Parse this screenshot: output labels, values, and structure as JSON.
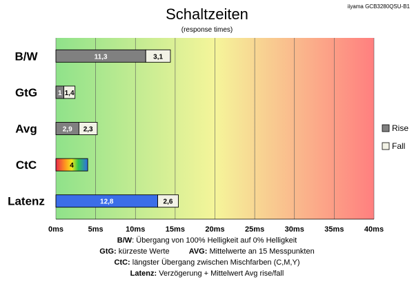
{
  "model": "iiyama GCB3280QSU-B1",
  "chart_data": {
    "type": "bar",
    "orientation": "horizontal",
    "stacked": true,
    "title": "Schaltzeiten",
    "subtitle": "(response times)",
    "categories": [
      "B/W",
      "GtG",
      "Avg",
      "CtC",
      "Latenz"
    ],
    "series": [
      {
        "name": "Rise",
        "values": [
          11.3,
          1,
          2.9,
          null,
          null
        ],
        "labels": [
          "11,3",
          "1",
          "2,9",
          "",
          ""
        ],
        "color": "#808080"
      },
      {
        "name": "Fall",
        "values": [
          3.1,
          1.4,
          2.3,
          null,
          2.6
        ],
        "labels": [
          "3,1",
          "1,4",
          "2,3",
          "",
          "2,6"
        ],
        "color": "#f2f2e6"
      }
    ],
    "ctc": {
      "value": 4,
      "label": "4"
    },
    "latenz": {
      "value": 12.8,
      "label": "12,8",
      "color": "#3b6ee8"
    },
    "xlim": [
      0,
      40
    ],
    "xticks": [
      0,
      5,
      10,
      15,
      20,
      25,
      30,
      35,
      40
    ],
    "xtick_labels": [
      "0ms",
      "5ms",
      "10ms",
      "15ms",
      "20ms",
      "25ms",
      "30ms",
      "35ms",
      "40ms"
    ],
    "grid": true,
    "legend_position": "right",
    "background_gradient": [
      "#8fe28a",
      "#f5f59a",
      "#ff7f7f"
    ]
  },
  "notes": [
    {
      "label": "B/W",
      "text": "Übergang von 100% Helligkeit auf 0% Helligkeit"
    },
    {
      "label": "GtG:",
      "text": "kürzeste Werte"
    },
    {
      "label": "AVG:",
      "text": "Mittelwerte an 15 Messpunkten"
    },
    {
      "label": "CtC:",
      "text": "längster Übergang zwischen Mischfarben (C,M,Y)"
    },
    {
      "label": "Latenz:",
      "text": "Verzögerung + Mittelwert Avg rise/fall"
    }
  ]
}
